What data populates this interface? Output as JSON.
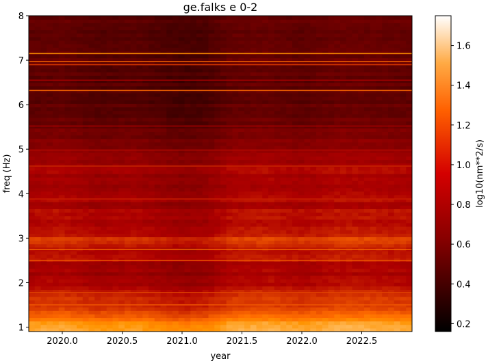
{
  "chart_data": {
    "type": "heatmap",
    "title": "ge.falks e 0-2",
    "xlabel": "year",
    "ylabel": "freq (Hz)",
    "colorbar_label": "log10(nm**2/s)",
    "colormap": "gist_heat",
    "xlim": [
      2019.72,
      2022.92
    ],
    "ylim": [
      0.9,
      8.0
    ],
    "clim": [
      0.16,
      1.75
    ],
    "x_ticks": [
      2020.0,
      2020.5,
      2021.0,
      2021.5,
      2022.0,
      2022.5
    ],
    "x_tick_labels": [
      "2020.0",
      "2020.5",
      "2021.0",
      "2021.5",
      "2022.0",
      "2022.5"
    ],
    "y_ticks": [
      1,
      2,
      3,
      4,
      5,
      6,
      7,
      8
    ],
    "y_tick_labels": [
      "1",
      "2",
      "3",
      "4",
      "5",
      "6",
      "7",
      "8"
    ],
    "colorbar_ticks": [
      0.2,
      0.4,
      0.6,
      0.8,
      1.0,
      1.2,
      1.4,
      1.6
    ],
    "colorbar_tick_labels": [
      "0.2",
      "0.4",
      "0.6",
      "0.8",
      "1.0",
      "1.2",
      "1.4",
      "1.6"
    ],
    "freq_profile": [
      [
        0.9,
        1.42
      ],
      [
        1.0,
        1.48
      ],
      [
        1.1,
        1.4
      ],
      [
        1.25,
        1.22
      ],
      [
        1.4,
        1.15
      ],
      [
        1.6,
        1.05
      ],
      [
        1.8,
        1.0
      ],
      [
        2.0,
        0.92
      ],
      [
        2.2,
        0.88
      ],
      [
        2.4,
        0.9
      ],
      [
        2.6,
        0.96
      ],
      [
        2.8,
        1.0
      ],
      [
        2.95,
        1.1
      ],
      [
        3.1,
        1.0
      ],
      [
        3.3,
        0.94
      ],
      [
        3.5,
        0.96
      ],
      [
        3.7,
        0.9
      ],
      [
        4.0,
        0.88
      ],
      [
        4.3,
        0.87
      ],
      [
        4.6,
        0.9
      ],
      [
        4.8,
        0.8
      ],
      [
        5.0,
        0.74
      ],
      [
        5.3,
        0.68
      ],
      [
        5.6,
        0.62
      ],
      [
        6.0,
        0.56
      ],
      [
        6.4,
        0.55
      ],
      [
        6.8,
        0.56
      ],
      [
        7.0,
        0.6
      ],
      [
        7.4,
        0.56
      ],
      [
        7.8,
        0.58
      ],
      [
        8.0,
        0.55
      ]
    ],
    "time_profile": [
      [
        2019.72,
        0.0
      ],
      [
        2020.0,
        0.02
      ],
      [
        2020.3,
        -0.04
      ],
      [
        2020.6,
        -0.02
      ],
      [
        2020.9,
        -0.08
      ],
      [
        2021.0,
        -0.1
      ],
      [
        2021.2,
        -0.08
      ],
      [
        2021.4,
        0.02
      ],
      [
        2021.7,
        0.04
      ],
      [
        2022.0,
        0.0
      ],
      [
        2022.3,
        0.05
      ],
      [
        2022.6,
        0.04
      ],
      [
        2022.92,
        0.02
      ]
    ],
    "spectral_lines": [
      {
        "freq": 7.15,
        "value": 1.4
      },
      {
        "freq": 6.97,
        "value": 1.25
      },
      {
        "freq": 6.9,
        "value": 1.1
      },
      {
        "freq": 6.32,
        "value": 1.25
      },
      {
        "freq": 6.55,
        "value": 0.9
      },
      {
        "freq": 5.52,
        "value": 0.9
      },
      {
        "freq": 4.98,
        "value": 0.95
      },
      {
        "freq": 4.62,
        "value": 1.05
      },
      {
        "freq": 3.88,
        "value": 1.02
      },
      {
        "freq": 2.75,
        "value": 1.3
      },
      {
        "freq": 2.5,
        "value": 1.2
      },
      {
        "freq": 1.78,
        "value": 1.15
      },
      {
        "freq": 1.5,
        "value": 1.2
      }
    ]
  }
}
